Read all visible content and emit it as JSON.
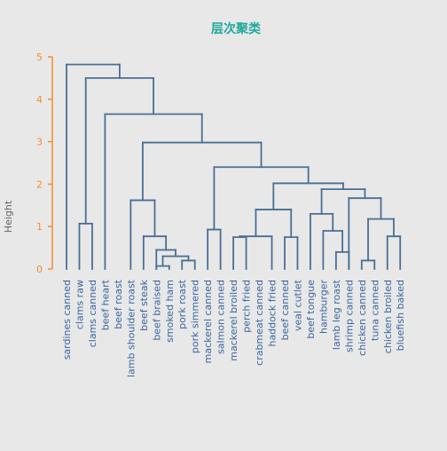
{
  "chart_data": {
    "type": "dendrogram",
    "title": "层次聚类",
    "ylabel": "Height",
    "ylim": [
      0,
      5
    ],
    "yticks": [
      0,
      1,
      2,
      3,
      4,
      5
    ],
    "leaves": [
      "sardines canned",
      "clams raw",
      "clams canned",
      "beef heart",
      "beef roast",
      "lamb shoulder roast",
      "beef steak",
      "beef braised",
      "smoked ham",
      "pork roast",
      "pork simmered",
      "mackerel canned",
      "salmon canned",
      "mackerel broiled",
      "perch fried",
      "crabmeat canned",
      "haddock fried",
      "beef canned",
      "veal cutlet",
      "beef tongue",
      "hamburger",
      "lamb leg roast",
      "shrimp canned",
      "chicken canned",
      "tuna canned",
      "chicken broiled",
      "bluefish baked"
    ],
    "merges": [
      {
        "left": "L:8",
        "right": "L:9",
        "height": 0.07
      },
      {
        "left": "L:24",
        "right": "L:25",
        "height": 0.2
      },
      {
        "left": "L:10",
        "right": "L:11",
        "height": 0.2
      },
      {
        "left": "L:22",
        "right": "L:23",
        "height": 0.4
      },
      {
        "left": "M:1",
        "right": "M:3",
        "height": 0.3
      },
      {
        "left": "L:8",
        "right": "M:5",
        "height": 0.45
      },
      {
        "left": "L:14",
        "right": "L:15",
        "height": 0.75
      },
      {
        "left": "L:18",
        "right": "L:19",
        "height": 0.75
      },
      {
        "left": "L:17",
        "right": "M:7",
        "height": 0.77
      },
      {
        "left": "L:26",
        "right": "L:27",
        "height": 0.77
      },
      {
        "left": "L:7",
        "right": "M:6",
        "height": 0.77
      },
      {
        "left": "L:21",
        "right": "M:4",
        "height": 0.9
      },
      {
        "left": "L:12",
        "right": "L:13",
        "height": 0.93
      },
      {
        "left": "L:2",
        "right": "L:3",
        "height": 1.07
      },
      {
        "left": "M:2",
        "right": "M:10",
        "height": 1.18
      },
      {
        "left": "L:20",
        "right": "M:12",
        "height": 1.3
      },
      {
        "left": "M:9",
        "right": "M:8",
        "height": 1.4
      },
      {
        "left": "L:6",
        "right": "M:11",
        "height": 1.62
      },
      {
        "left": "L:23",
        "right": "M:15",
        "height": 1.67
      },
      {
        "left": "M:16",
        "right": "M:19",
        "height": 1.88
      },
      {
        "left": "M:17",
        "right": "M:20",
        "height": 2.02
      },
      {
        "left": "M:13",
        "right": "M:21",
        "height": 2.4
      },
      {
        "left": "M:18",
        "right": "M:22",
        "height": 2.98
      },
      {
        "left": "L:4",
        "right": "M:23",
        "height": 3.65
      },
      {
        "left": "M:14",
        "right": "M:24",
        "height": 4.5
      },
      {
        "left": "L:1",
        "right": "M:25",
        "height": 4.82
      }
    ],
    "colors": {
      "background": "#e8e8e8",
      "lines": "#4a6f93",
      "title": "#20a99c",
      "axis": "#f28e2b",
      "labels": "#3a66a0",
      "ylabel": "#666666"
    }
  }
}
